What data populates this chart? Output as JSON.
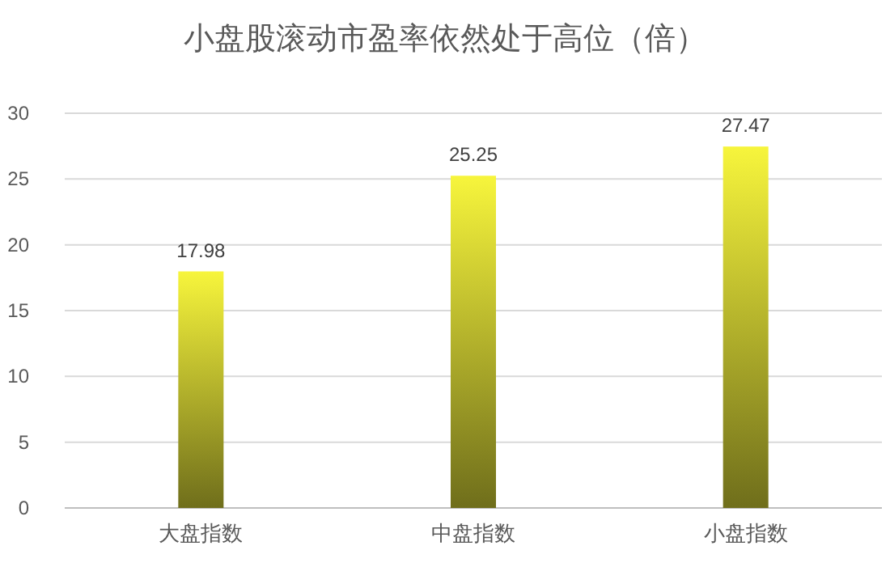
{
  "chart_data": {
    "type": "bar",
    "title": "小盘股滚动市盈率依然处于高位（倍）",
    "categories": [
      "大盘指数",
      "中盘指数",
      "小盘指数"
    ],
    "values": [
      17.98,
      25.25,
      27.47
    ],
    "color": "#f7f53c",
    "ylim": [
      0,
      30
    ],
    "yticks": [
      0,
      5,
      10,
      15,
      20,
      25,
      30
    ],
    "grid": "y",
    "data_labels": true
  }
}
